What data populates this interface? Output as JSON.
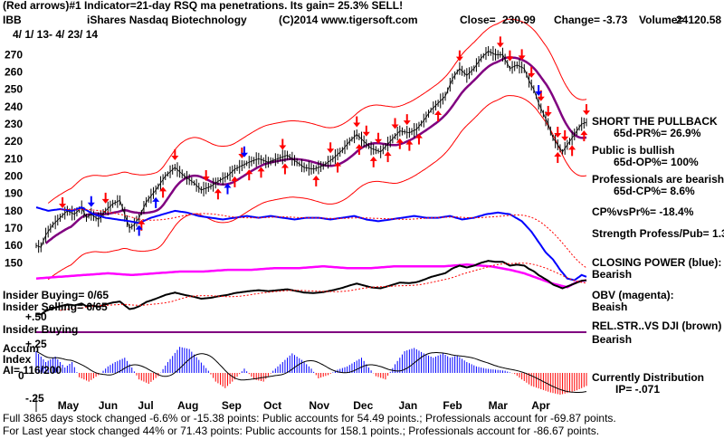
{
  "header": {
    "line1": "(Red arrows)#1 Indicator=21-day RSQ ma penetrations. Its gain= 25.3% SELL!",
    "ticker": "IBB",
    "name": "iShares Nasdaq Biotechnology",
    "copyright": "(C)2014 www.tigersoft.com",
    "close_label": "Close=",
    "close": "230.99",
    "change_label": "Change=",
    "change": "-3.73",
    "volume_label": "Volume=",
    "volume": "24120.58",
    "date_range": "4/ 1/ 13- 4/ 23/ 14"
  },
  "right_panel": {
    "signal": "SHORT THE PULLBACK",
    "pr": "65d-PR%= 26.9%",
    "public": "Public is bullish",
    "op": "65d-OP%= 100%",
    "professionals": "Professionals are bearish",
    "cp": "65d-CP%= 8.6%",
    "cpvspr": "CP%vsPr%= -18.4%",
    "strength": "Strength Profess/Pub= 1.3",
    "closing_power": "CLOSING POWER (blue):",
    "cp_state": "Bearish",
    "obv": "OBV (magenta):",
    "obv_state": "Beaish",
    "relstr": "REL.STR..VS DJI (brown)",
    "relstr_state": "Bearish",
    "dist": "Currently Distribution",
    "ip": "IP= -.071"
  },
  "left_panel": {
    "insider_buying": "Insider Buying= 0/65",
    "insider_selling": "Insider Selling= 6/65",
    "plus50": "+.50",
    "insider_buying2": "Insider Buying",
    "accum": "Accum",
    "index": "Index",
    "ai": "AI= 116/200",
    "minus25": "-.25",
    "plus25": "+.25",
    "zero": "0"
  },
  "footer": {
    "line1_prefix": "For Last ",
    "line1": "65 days stock changed -6.6% or -15.38 points:  Public accounts for  54.49 points.;  Professionals account for  -69.87 points.",
    "line2": "For Last year stock changed  44% or  71.43 points:  Public accounts for  158.1 points.;  Professionals account for  -86.67 points.",
    "overlap": "Full 38"
  },
  "colors": {
    "price": "#000000",
    "ma": "#800080",
    "band": "#ff0000",
    "closing_power": "#0000ff",
    "obv": "#ff00ff",
    "accum_pos": "#0000ff",
    "accum_neg": "#ff0000",
    "insider_line": "#800080",
    "rel_str": "#000000"
  },
  "chart_data": {
    "type": "line",
    "x": [
      "May",
      "Jun",
      "Jul",
      "Aug",
      "Sep",
      "Oct",
      "Nov",
      "Dec",
      "Jan",
      "Feb",
      "Mar",
      "Apr"
    ],
    "yticks": [
      270,
      260,
      250,
      240,
      230,
      220,
      210,
      200,
      190,
      180,
      170,
      160,
      150
    ],
    "ylim": [
      145,
      278
    ],
    "price_keypoints": [
      [
        0,
        160
      ],
      [
        4,
        159
      ],
      [
        8,
        166
      ],
      [
        14,
        172
      ],
      [
        20,
        176
      ],
      [
        26,
        180
      ],
      [
        32,
        178
      ],
      [
        38,
        182
      ],
      [
        42,
        176
      ],
      [
        46,
        178
      ],
      [
        52,
        175
      ],
      [
        58,
        180
      ],
      [
        64,
        184
      ],
      [
        70,
        186
      ],
      [
        78,
        170
      ],
      [
        82,
        172
      ],
      [
        86,
        176
      ],
      [
        92,
        185
      ],
      [
        100,
        192
      ],
      [
        108,
        200
      ],
      [
        116,
        205
      ],
      [
        124,
        200
      ],
      [
        132,
        196
      ],
      [
        138,
        192
      ],
      [
        146,
        194
      ],
      [
        152,
        197
      ],
      [
        160,
        200
      ],
      [
        166,
        204
      ],
      [
        172,
        206
      ],
      [
        178,
        208
      ],
      [
        186,
        210
      ],
      [
        194,
        208
      ],
      [
        202,
        210
      ],
      [
        210,
        212
      ],
      [
        218,
        208
      ],
      [
        224,
        205
      ],
      [
        232,
        204
      ],
      [
        240,
        206
      ],
      [
        248,
        210
      ],
      [
        256,
        215
      ],
      [
        262,
        220
      ],
      [
        268,
        224
      ],
      [
        274,
        220
      ],
      [
        280,
        216
      ],
      [
        288,
        214
      ],
      [
        296,
        220
      ],
      [
        304,
        226
      ],
      [
        312,
        225
      ],
      [
        318,
        227
      ],
      [
        324,
        232
      ],
      [
        330,
        238
      ],
      [
        336,
        242
      ],
      [
        342,
        246
      ],
      [
        348,
        256
      ],
      [
        354,
        262
      ],
      [
        360,
        258
      ],
      [
        366,
        262
      ],
      [
        372,
        268
      ],
      [
        378,
        272
      ],
      [
        384,
        270
      ],
      [
        390,
        270
      ],
      [
        396,
        262
      ],
      [
        402,
        264
      ],
      [
        408,
        262
      ],
      [
        412,
        255
      ],
      [
        416,
        250
      ],
      [
        420,
        242
      ],
      [
        424,
        236
      ],
      [
        428,
        230
      ],
      [
        432,
        222
      ],
      [
        436,
        218
      ],
      [
        440,
        214
      ],
      [
        444,
        218
      ],
      [
        448,
        222
      ],
      [
        452,
        226
      ],
      [
        456,
        230
      ],
      [
        460,
        231
      ]
    ],
    "closing_power_keypoints": [
      [
        0,
        182
      ],
      [
        10,
        180
      ],
      [
        20,
        181
      ],
      [
        30,
        180
      ],
      [
        38,
        182
      ],
      [
        48,
        178
      ],
      [
        58,
        176
      ],
      [
        68,
        175
      ],
      [
        78,
        174
      ],
      [
        86,
        173
      ],
      [
        96,
        176
      ],
      [
        106,
        178
      ],
      [
        116,
        180
      ],
      [
        126,
        179
      ],
      [
        136,
        177
      ],
      [
        146,
        176
      ],
      [
        156,
        175
      ],
      [
        166,
        176
      ],
      [
        176,
        177
      ],
      [
        186,
        176
      ],
      [
        196,
        177
      ],
      [
        206,
        176
      ],
      [
        216,
        175
      ],
      [
        226,
        176
      ],
      [
        236,
        176
      ],
      [
        246,
        175
      ],
      [
        256,
        176
      ],
      [
        266,
        177
      ],
      [
        276,
        175
      ],
      [
        286,
        174
      ],
      [
        296,
        175
      ],
      [
        306,
        176
      ],
      [
        316,
        177
      ],
      [
        326,
        176
      ],
      [
        336,
        176
      ],
      [
        346,
        177
      ],
      [
        356,
        175
      ],
      [
        366,
        176
      ],
      [
        376,
        178
      ],
      [
        386,
        179
      ],
      [
        396,
        178
      ],
      [
        406,
        174
      ],
      [
        414,
        168
      ],
      [
        420,
        162
      ],
      [
        426,
        156
      ],
      [
        432,
        152
      ],
      [
        438,
        146
      ],
      [
        444,
        141
      ],
      [
        450,
        140
      ],
      [
        456,
        143
      ],
      [
        460,
        142
      ]
    ],
    "obv_keypoints": [
      [
        0,
        141
      ],
      [
        20,
        142
      ],
      [
        40,
        143
      ],
      [
        60,
        144
      ],
      [
        80,
        143
      ],
      [
        100,
        144
      ],
      [
        120,
        145
      ],
      [
        140,
        145
      ],
      [
        160,
        146
      ],
      [
        180,
        146
      ],
      [
        200,
        147
      ],
      [
        220,
        147
      ],
      [
        240,
        148
      ],
      [
        260,
        147
      ],
      [
        280,
        147
      ],
      [
        300,
        148
      ],
      [
        320,
        148
      ],
      [
        340,
        148
      ],
      [
        360,
        149
      ],
      [
        380,
        148
      ],
      [
        396,
        146
      ],
      [
        408,
        144
      ],
      [
        420,
        141
      ],
      [
        432,
        138
      ],
      [
        444,
        136
      ],
      [
        452,
        139
      ],
      [
        460,
        140
      ]
    ],
    "accum_keypoints": [
      [
        0,
        0.2
      ],
      [
        8,
        0.1
      ],
      [
        16,
        0.15
      ],
      [
        24,
        0.05
      ],
      [
        30,
        0.1
      ],
      [
        36,
        -0.04
      ],
      [
        44,
        -0.08
      ],
      [
        52,
        -0.02
      ],
      [
        60,
        0.06
      ],
      [
        66,
        0.1
      ],
      [
        74,
        0.14
      ],
      [
        80,
        0.05
      ],
      [
        86,
        -0.06
      ],
      [
        94,
        -0.1
      ],
      [
        102,
        -0.03
      ],
      [
        110,
        0.1
      ],
      [
        120,
        0.24
      ],
      [
        128,
        0.22
      ],
      [
        136,
        0.12
      ],
      [
        144,
        0.02
      ],
      [
        150,
        -0.08
      ],
      [
        158,
        -0.14
      ],
      [
        166,
        -0.06
      ],
      [
        174,
        0.04
      ],
      [
        182,
        -0.06
      ],
      [
        190,
        -0.08
      ],
      [
        198,
        0.02
      ],
      [
        206,
        0.1
      ],
      [
        214,
        0.18
      ],
      [
        222,
        0.12
      ],
      [
        230,
        0.04
      ],
      [
        236,
        -0.05
      ],
      [
        244,
        -0.02
      ],
      [
        252,
        0.03
      ],
      [
        260,
        0.06
      ],
      [
        266,
        0.1
      ],
      [
        272,
        0.14
      ],
      [
        278,
        0.05
      ],
      [
        284,
        -0.03
      ],
      [
        292,
        -0.06
      ],
      [
        300,
        0.08
      ],
      [
        308,
        0.2
      ],
      [
        316,
        0.23
      ],
      [
        324,
        0.18
      ],
      [
        332,
        0.14
      ],
      [
        340,
        0.18
      ],
      [
        346,
        0.14
      ],
      [
        352,
        0.16
      ],
      [
        360,
        0.1
      ],
      [
        368,
        0.06
      ],
      [
        376,
        0.04
      ],
      [
        384,
        0.03
      ],
      [
        392,
        0.02
      ],
      [
        400,
        -0.01
      ],
      [
        406,
        -0.06
      ],
      [
        414,
        -0.12
      ],
      [
        422,
        -0.15
      ],
      [
        430,
        -0.18
      ],
      [
        438,
        -0.2
      ],
      [
        446,
        -0.18
      ],
      [
        452,
        -0.16
      ],
      [
        460,
        -0.12
      ]
    ],
    "red_arrows_down_x": [
      22,
      58,
      116,
      142,
      172,
      206,
      246,
      268,
      276,
      286,
      300,
      310,
      354,
      388,
      396,
      406,
      414,
      422,
      428,
      436,
      442,
      460
    ],
    "red_arrows_up_x": [
      88,
      106,
      152,
      166,
      178,
      188,
      208,
      234,
      252,
      270,
      282,
      294,
      304,
      312,
      320,
      336,
      436,
      448,
      458
    ],
    "blue_arrows_down_x": [
      46,
      174,
      420
    ],
    "blue_arrows_up_x": [
      86,
      100,
      160
    ]
  }
}
